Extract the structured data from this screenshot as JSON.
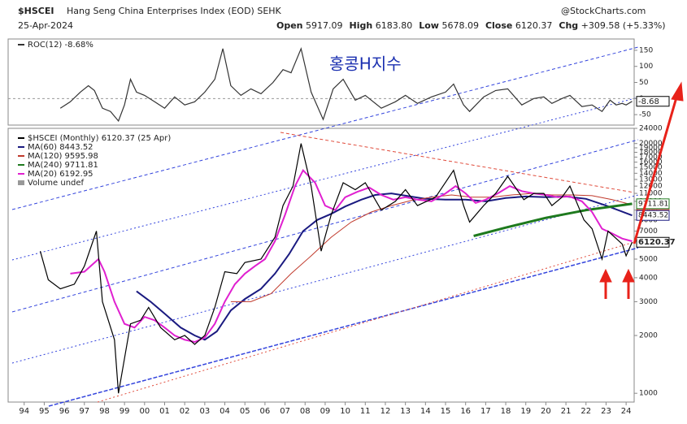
{
  "header": {
    "symbol": "$HSCEI",
    "name": "Hang Seng China Enterprises Index (EOD) SEHK",
    "date": "25-Apr-2024",
    "source": "@StockCharts.com",
    "stats": [
      {
        "label": "Open",
        "value": "5917.09"
      },
      {
        "label": "High",
        "value": "6183.80"
      },
      {
        "label": "Low",
        "value": "5678.09"
      },
      {
        "label": "Close",
        "value": "6120.37"
      },
      {
        "label": "Chg",
        "value": "+309.58 (+5.33%)"
      }
    ],
    "annotation": "홍콩H지수"
  },
  "chart_data": [
    {
      "type": "line",
      "name": "$HSCEI (Monthly)",
      "date_label": "(25 Apr)",
      "color": "#000000",
      "log_scale": true,
      "x": [
        1994.8,
        1995.2,
        1995.8,
        1996.5,
        1997.0,
        1997.6,
        1997.9,
        1998.5,
        1998.7,
        1999.3,
        1999.8,
        2000.2,
        2000.8,
        2001.5,
        2002.0,
        2002.5,
        2003.0,
        2003.5,
        2004.0,
        2004.6,
        2005.0,
        2005.8,
        2006.5,
        2006.9,
        2007.4,
        2007.8,
        2008.3,
        2008.8,
        2009.3,
        2009.9,
        2010.5,
        2011.0,
        2011.8,
        2012.5,
        2013.0,
        2013.6,
        2014.5,
        2015.4,
        2015.9,
        2016.2,
        2016.9,
        2017.5,
        2018.1,
        2018.9,
        2019.4,
        2019.9,
        2020.3,
        2020.8,
        2021.2,
        2021.9,
        2022.3,
        2022.8,
        2023.1,
        2023.8,
        2024.0,
        2024.3
      ],
      "values": [
        5500,
        3900,
        3500,
        3700,
        4600,
        7000,
        3000,
        1900,
        1000,
        2300,
        2400,
        2800,
        2200,
        1900,
        2000,
        1800,
        2000,
        2800,
        4300,
        4200,
        4800,
        5000,
        6500,
        9500,
        12000,
        20000,
        12000,
        5500,
        8500,
        12500,
        11500,
        12500,
        9000,
        10000,
        11500,
        9500,
        10500,
        14500,
        9500,
        7800,
        9500,
        11000,
        13500,
        10200,
        11000,
        11000,
        9500,
        10500,
        12000,
        8000,
        7200,
        5000,
        7000,
        6000,
        5200,
        6120.37
      ],
      "series": [
        {
          "name": "MA(60)",
          "color": "#1a1a80",
          "width": 2,
          "x": [
            1999.6,
            2000.3,
            2001.0,
            2001.8,
            2002.5,
            2003.0,
            2003.6,
            2004.3,
            2005.0,
            2005.8,
            2006.5,
            2007.2,
            2007.9,
            2008.6,
            2009.3,
            2010.0,
            2010.8,
            2011.5,
            2012.3,
            2013.0,
            2014.0,
            2015.0,
            2016.0,
            2017.0,
            2018.0,
            2019.0,
            2020.0,
            2021.0,
            2022.0,
            2023.0,
            2024.3
          ],
          "values": [
            3400,
            3000,
            2600,
            2200,
            2000,
            1900,
            2100,
            2700,
            3100,
            3500,
            4200,
            5300,
            7000,
            8000,
            8600,
            9400,
            10200,
            10800,
            11000,
            10700,
            10300,
            10200,
            10200,
            10000,
            10400,
            10600,
            10500,
            10600,
            10300,
            9500,
            8443.52
          ]
        },
        {
          "name": "MA(120)",
          "color": "#c0392b",
          "width": 1,
          "x": [
            2004.3,
            2005.3,
            2006.3,
            2007.3,
            2008.3,
            2009.3,
            2010.3,
            2011.3,
            2012.3,
            2013.3,
            2014.3,
            2015.3,
            2016.3,
            2017.3,
            2018.3,
            2019.3,
            2020.3,
            2021.3,
            2022.3,
            2023.3,
            2024.3
          ],
          "values": [
            3000,
            3000,
            3300,
            4200,
            5200,
            6500,
            7800,
            8800,
            9500,
            10100,
            10500,
            10800,
            10500,
            10500,
            10800,
            11000,
            10800,
            10800,
            10700,
            10200,
            9595.98
          ]
        },
        {
          "name": "MA(240)",
          "color": "#1e7a1e",
          "width": 3,
          "x": [
            2016.4,
            2018.0,
            2020.0,
            2022.0,
            2024.3
          ],
          "values": [
            6600,
            7300,
            8200,
            9000,
            9711.81
          ]
        },
        {
          "name": "MA(20)",
          "color": "#e020d0",
          "width": 2,
          "x": [
            1996.3,
            1997.0,
            1997.7,
            1998.0,
            1998.5,
            1999.0,
            1999.5,
            2000.0,
            2000.5,
            2001.0,
            2001.5,
            2002.0,
            2002.5,
            2003.0,
            2003.5,
            2004.0,
            2004.5,
            2005.0,
            2005.5,
            2006.0,
            2006.5,
            2007.0,
            2007.5,
            2007.9,
            2008.5,
            2009.0,
            2009.5,
            2010.0,
            2010.6,
            2011.2,
            2011.8,
            2012.4,
            2013.0,
            2013.6,
            2014.3,
            2015.0,
            2015.5,
            2016.0,
            2016.5,
            2017.0,
            2017.6,
            2018.2,
            2018.8,
            2019.4,
            2020.0,
            2020.6,
            2021.2,
            2021.8,
            2022.3,
            2022.8,
            2023.3,
            2023.8,
            2024.3
          ],
          "values": [
            4200,
            4300,
            5000,
            4300,
            3000,
            2300,
            2200,
            2500,
            2400,
            2200,
            2000,
            1900,
            1850,
            1950,
            2300,
            3000,
            3700,
            4200,
            4600,
            5000,
            6200,
            8500,
            12000,
            14500,
            12500,
            9500,
            9000,
            10500,
            11200,
            11800,
            10800,
            10200,
            10500,
            10200,
            10000,
            11000,
            12000,
            11000,
            9800,
            10200,
            11000,
            12000,
            11300,
            11000,
            10800,
            10500,
            10600,
            10000,
            8800,
            7200,
            6800,
            6400,
            6192.95
          ]
        }
      ],
      "volume_label": "Volume undef",
      "xlim": [
        1993.2,
        2024.4
      ],
      "xticks": [
        {
          "value": 1994,
          "label": "94"
        },
        {
          "value": 1995,
          "label": "95"
        },
        {
          "value": 1996,
          "label": "96"
        },
        {
          "value": 1997,
          "label": "97"
        },
        {
          "value": 1998,
          "label": "98"
        },
        {
          "value": 1999,
          "label": "99"
        },
        {
          "value": 2000,
          "label": "00"
        },
        {
          "value": 2001,
          "label": "01"
        },
        {
          "value": 2002,
          "label": "02"
        },
        {
          "value": 2003,
          "label": "03"
        },
        {
          "value": 2004,
          "label": "04"
        },
        {
          "value": 2005,
          "label": "05"
        },
        {
          "value": 2006,
          "label": "06"
        },
        {
          "value": 2007,
          "label": "07"
        },
        {
          "value": 2008,
          "label": "08"
        },
        {
          "value": 2009,
          "label": "09"
        },
        {
          "value": 2010,
          "label": "10"
        },
        {
          "value": 2011,
          "label": "11"
        },
        {
          "value": 2012,
          "label": "12"
        },
        {
          "value": 2013,
          "label": "13"
        },
        {
          "value": 2014,
          "label": "14"
        },
        {
          "value": 2015,
          "label": "15"
        },
        {
          "value": 2016,
          "label": "16"
        },
        {
          "value": 2017,
          "label": "17"
        },
        {
          "value": 2018,
          "label": "18"
        },
        {
          "value": 2019,
          "label": "19"
        },
        {
          "value": 2020,
          "label": "20"
        },
        {
          "value": 2021,
          "label": "21"
        },
        {
          "value": 2022,
          "label": "22"
        },
        {
          "value": 2023,
          "label": "23"
        },
        {
          "value": 2024,
          "label": "24"
        }
      ],
      "ylim": [
        900,
        24000
      ],
      "yticks": [
        1000,
        2000,
        3000,
        4000,
        5000,
        7000,
        8000,
        9000,
        10000,
        11000,
        12000,
        13000,
        14000,
        15000,
        16000,
        17000,
        18000,
        19000,
        20000,
        24000
      ]
    },
    {
      "type": "line",
      "name": "ROC(12)",
      "last_label": "-8.68%",
      "color": "#333333",
      "x": [
        1995.8,
        1996.3,
        1996.8,
        1997.2,
        1997.5,
        1997.9,
        1998.3,
        1998.7,
        1999.0,
        1999.3,
        1999.6,
        2000.0,
        2000.5,
        2001.0,
        2001.5,
        2002.0,
        2002.5,
        2003.0,
        2003.5,
        2003.9,
        2004.3,
        2004.8,
        2005.3,
        2005.8,
        2006.4,
        2006.9,
        2007.3,
        2007.8,
        2008.3,
        2008.9,
        2009.4,
        2009.9,
        2010.5,
        2011.0,
        2011.8,
        2012.5,
        2013.0,
        2013.6,
        2014.3,
        2015.0,
        2015.4,
        2015.9,
        2016.2,
        2016.9,
        2017.5,
        2018.1,
        2018.8,
        2019.4,
        2019.9,
        2020.3,
        2020.8,
        2021.2,
        2021.8,
        2022.3,
        2022.8,
        2023.2,
        2023.5,
        2023.8,
        2024.0,
        2024.3
      ],
      "values": [
        -30,
        -10,
        20,
        40,
        25,
        -30,
        -40,
        -70,
        -20,
        60,
        20,
        10,
        -10,
        -30,
        5,
        -20,
        -10,
        20,
        60,
        155,
        40,
        10,
        30,
        15,
        50,
        90,
        80,
        155,
        20,
        -65,
        30,
        60,
        -5,
        10,
        -30,
        -10,
        10,
        -15,
        5,
        20,
        45,
        -20,
        -40,
        5,
        25,
        30,
        -20,
        0,
        5,
        -15,
        0,
        10,
        -25,
        -20,
        -40,
        -5,
        -20,
        -15,
        -20,
        -8.68
      ],
      "xlim": [
        1993.2,
        2024.4
      ],
      "ylim": [
        -80,
        170
      ],
      "yticks": [
        150,
        100,
        50,
        0,
        -50
      ]
    }
  ]
}
